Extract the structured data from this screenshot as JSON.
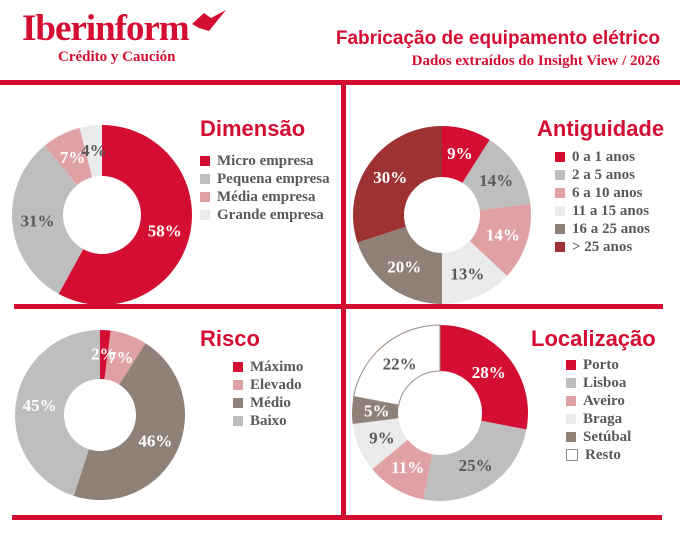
{
  "header": {
    "logo": "Iberinform",
    "logo_tagline": "Crédito y Caución",
    "title": "Fabricação de equipamento elétrico",
    "subtitle": "Dados extraídos do Insight View / 2026"
  },
  "colors": {
    "brand_red": "#D30E32",
    "gray": "#BEBEBE",
    "pink": "#DFA1A3",
    "light_gray": "#EBEBEB",
    "taupe": "#8F8078",
    "maroon": "#9E3132",
    "white": "#FFFFFF",
    "dark_text": "#58595B",
    "resto_outline": "#9C8B81"
  },
  "chart_data": [
    {
      "type": "pie",
      "title": "Dimensão",
      "categories": [
        "Micro empresa",
        "Pequena empresa",
        "Média empresa",
        "Grande empresa"
      ],
      "values": [
        58,
        31,
        7,
        4
      ],
      "value_labels": [
        "58%",
        "31%",
        "7%",
        "4%"
      ],
      "slice_colors": [
        "#D30E32",
        "#BEBEBE",
        "#DFA1A3",
        "#EBEBEB"
      ],
      "label_colors": [
        "#FFFFFF",
        "#58595B",
        "#FFFFFF",
        "#58595B"
      ],
      "slice_strokes": [
        null,
        null,
        null,
        null
      ],
      "legend_position": "right",
      "start_angle": 0,
      "direction": "clockwise"
    },
    {
      "type": "pie",
      "title": "Antiguidade",
      "categories": [
        "0 a 1 anos",
        "2 a 5 anos",
        "6 a 10 anos",
        "11 a 15 anos",
        "16 a 25 anos",
        "> 25 anos"
      ],
      "values": [
        9,
        14,
        14,
        13,
        20,
        30
      ],
      "value_labels": [
        "9%",
        "14%",
        "14%",
        "13%",
        "20%",
        "30%"
      ],
      "slice_colors": [
        "#D30E32",
        "#BEBEBE",
        "#DFA1A3",
        "#EBEBEB",
        "#8F8078",
        "#9E3132"
      ],
      "label_colors": [
        "#FFFFFF",
        "#58595B",
        "#FFFFFF",
        "#58595B",
        "#FFFFFF",
        "#FFFFFF"
      ],
      "slice_strokes": [
        null,
        null,
        null,
        null,
        null,
        null
      ],
      "legend_position": "right",
      "start_angle": 0,
      "direction": "clockwise"
    },
    {
      "type": "pie",
      "title": "Risco",
      "categories": [
        "Máximo",
        "Elevado",
        "Médio",
        "Baixo"
      ],
      "values": [
        2,
        7,
        46,
        45
      ],
      "value_labels": [
        "2%",
        "7%",
        "46%",
        "45%"
      ],
      "slice_colors": [
        "#D30E32",
        "#DFA1A3",
        "#8F8078",
        "#BEBEBE"
      ],
      "label_colors": [
        "#FFFFFF",
        "#FFFFFF",
        "#FFFFFF",
        "#FFFFFF"
      ],
      "slice_strokes": [
        null,
        null,
        null,
        null
      ],
      "legend_position": "right",
      "start_angle": 0,
      "direction": "clockwise"
    },
    {
      "type": "pie",
      "title": "Localização",
      "categories": [
        "Porto",
        "Lisboa",
        "Aveiro",
        "Braga",
        "Setúbal",
        "Resto"
      ],
      "values": [
        28,
        25,
        11,
        9,
        5,
        22
      ],
      "value_labels": [
        "28%",
        "25%",
        "11%",
        "9%",
        "5%",
        "22%"
      ],
      "slice_colors": [
        "#D30E32",
        "#BEBEBE",
        "#DFA1A3",
        "#EBEBEB",
        "#8F8078",
        "#FFFFFF"
      ],
      "label_colors": [
        "#FFFFFF",
        "#58595B",
        "#FFFFFF",
        "#58595B",
        "#FFFFFF",
        "#58595B"
      ],
      "slice_strokes": [
        null,
        null,
        null,
        null,
        null,
        "#9C8B81"
      ],
      "legend_position": "right",
      "start_angle": 0,
      "direction": "clockwise"
    }
  ]
}
